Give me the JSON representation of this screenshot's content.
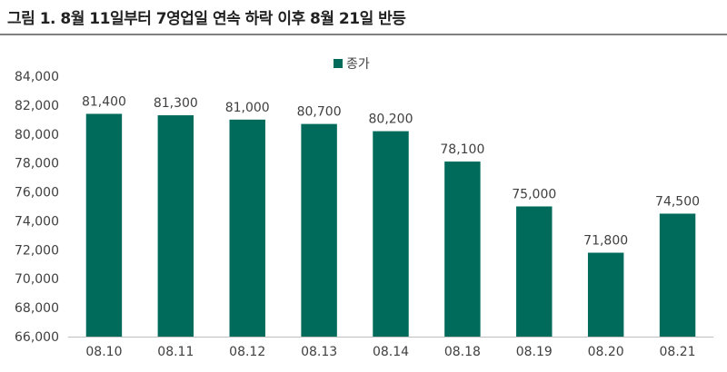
{
  "figure_title": "그림 1. 8월 11일부터 7영업일 연속 하락 이후 8월 21일 반등",
  "colors": {
    "bar": "#006b5b",
    "axis": "#bfbfbf",
    "text": "#404040"
  },
  "chart_data": {
    "type": "bar",
    "categories": [
      "08.10",
      "08.11",
      "08.12",
      "08.13",
      "08.14",
      "08.18",
      "08.19",
      "08.20",
      "08.21"
    ],
    "series": [
      {
        "name": "종가",
        "values": [
          81400,
          81300,
          81000,
          80700,
          80200,
          78100,
          75000,
          71800,
          74500
        ]
      }
    ],
    "data_labels": [
      "81,400",
      "81,300",
      "81,000",
      "80,700",
      "80,200",
      "78,100",
      "75,000",
      "71,800",
      "74,500"
    ],
    "y_ticks": [
      "66,000",
      "68,000",
      "70,000",
      "72,000",
      "74,000",
      "76,000",
      "78,000",
      "80,000",
      "82,000",
      "84,000"
    ],
    "ylim": [
      66000,
      84000
    ],
    "ystep": 2000,
    "legend_position": "top-center",
    "grid": false
  }
}
